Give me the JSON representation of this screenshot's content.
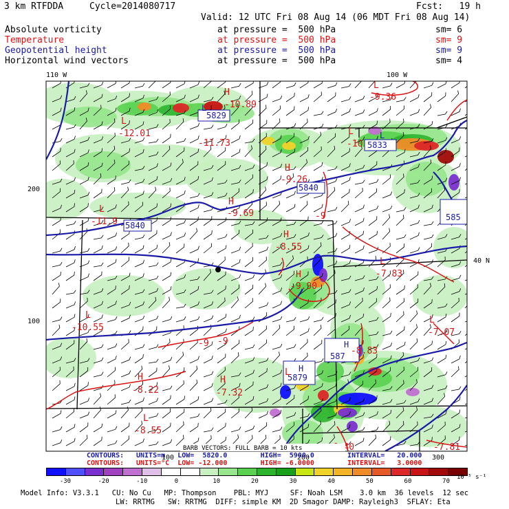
{
  "header": {
    "model": "3 km RTFDDA",
    "cycle": "Cycle=2014080717",
    "fcst": "Fcst:   19 h",
    "valid": "Valid: 12 UTC Fri 08 Aug 14 (06 MDT Fri 08 Aug 14)"
  },
  "fields": [
    {
      "name": "Absolute vorticity",
      "level": "at pressure =  500 hPa",
      "sm": "sm= 6",
      "color": "#000000"
    },
    {
      "name": "Temperature",
      "level": "at pressure =  500 hPa",
      "sm": "sm= 9",
      "color": "#dd1111"
    },
    {
      "name": "Geopotential height",
      "level": "at pressure =  500 hPa",
      "sm": "sm= 9",
      "color": "#1a1aa8"
    },
    {
      "name": "Horizontal wind vectors",
      "level": "at pressure =  500 hPa",
      "sm": "sm= 4",
      "color": "#000000"
    }
  ],
  "map": {
    "lon_labels": [
      "110 W",
      "100 W"
    ],
    "lat_labels": [
      "40 N"
    ],
    "y_ticks": [
      "200",
      "100"
    ],
    "x_ticks": [
      "100",
      "200",
      "300"
    ],
    "temp_labels": [
      "-12.01",
      "-11.73",
      "-10.89",
      "-9.36",
      "-10",
      "-9.26",
      "-9.69",
      "-11.9",
      "-8.55",
      "-9",
      "-9.90",
      "-7.83",
      "-10.55",
      "-9",
      "-9",
      "-7.07",
      "-8.83",
      "-8.22",
      "-7.32",
      "-8.55",
      "-7.81",
      "-6.40"
    ],
    "temp_extrema": [
      "L",
      "H",
      "L",
      "L",
      "H",
      "H",
      "L",
      "H",
      "L",
      "H",
      "L",
      "H",
      "H",
      "L",
      "L",
      "L"
    ],
    "height_labels": [
      "5829",
      "5833",
      "5840",
      "5840",
      "585",
      "5879",
      "587"
    ],
    "height_extrema": [
      "L",
      "L",
      "H",
      "H"
    ],
    "vector_label": "BARB VECTORS:  FULL BARB = 10 kts"
  },
  "contours": {
    "line1": {
      "label": "CONTOURS:",
      "text": "UNITS=m   LOW=  5820.0        HIGH=  5900.0        INTERVAL=   20.000"
    },
    "line2": {
      "label": "CONTOURS:",
      "text": "UNITS=°C  LOW= -12.000        HIGH= -6.0000        INTERVAL=   3.0000"
    }
  },
  "colorbar": {
    "labels": [
      "-30",
      "-20",
      "-10",
      "0",
      "10",
      "20",
      "30",
      "40",
      "50",
      "60",
      "70"
    ],
    "units": "10⁻⁵ s⁻¹",
    "colors": [
      "#1010ff",
      "#5050ff",
      "#7b2fd0",
      "#a040c0",
      "#c070d0",
      "#e0c0e8",
      "#ffffff",
      "#ffffff",
      "#c8f0c0",
      "#96e68c",
      "#5ad250",
      "#2db42d",
      "#18a018",
      "#c8e614",
      "#f0d228",
      "#f5b428",
      "#f08c28",
      "#e65a28",
      "#dc2828",
      "#c81414",
      "#a00a0a",
      "#780000"
    ]
  },
  "footer": {
    "line1": "Model Info: V3.3.1   CU: No Cu   MP: Thompson    PBL: MYJ     SF: Noah LSM    3.0 km  36 levels  12 sec",
    "line2": "LW: RRTMG   SW: RRTMG  DIFF: simple KM  2D Smagor DAMP: Rayleigh3  SFLAY: Eta"
  }
}
